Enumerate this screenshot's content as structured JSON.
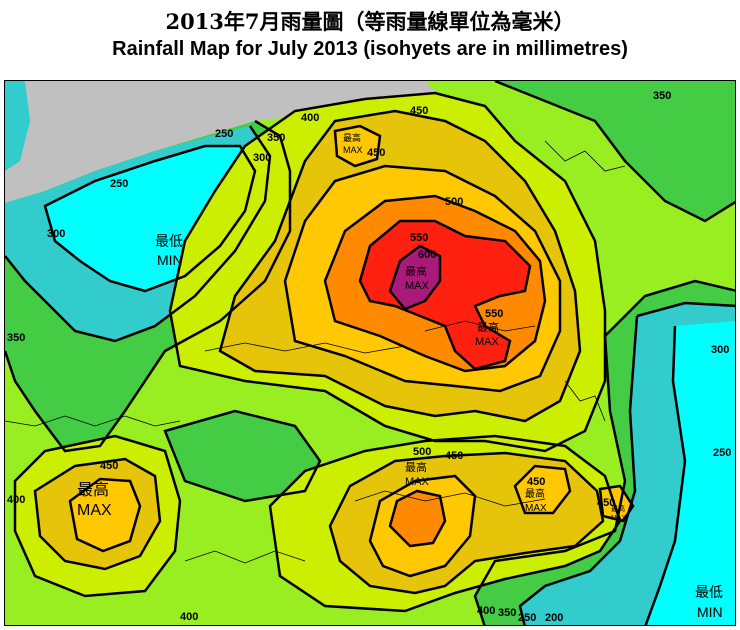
{
  "title_zh": "2013年7月雨量圖（等雨量線單位為毫米）",
  "title_en": "Rainfall Map for July 2013 (isohyets are in millimetres)",
  "legend_terms": {
    "max_zh": "最高",
    "max_en": "MAX",
    "min_zh": "最低",
    "min_en": "MIN"
  },
  "isohyet_labels": [
    {
      "id": "250-nw",
      "text": "250"
    },
    {
      "id": "250-n",
      "text": "250"
    },
    {
      "id": "250-e",
      "text": "250"
    },
    {
      "id": "300-w",
      "text": "300"
    },
    {
      "id": "300-n",
      "text": "300"
    },
    {
      "id": "300-e",
      "text": "300"
    },
    {
      "id": "350-w",
      "text": "350"
    },
    {
      "id": "350-n",
      "text": "350"
    },
    {
      "id": "350-ne",
      "text": "350"
    },
    {
      "id": "350-s",
      "text": "350"
    },
    {
      "id": "400-n",
      "text": "400"
    },
    {
      "id": "400-w",
      "text": "400"
    },
    {
      "id": "400-s",
      "text": "400"
    },
    {
      "id": "400-se",
      "text": "400"
    },
    {
      "id": "450-n",
      "text": "450"
    },
    {
      "id": "450-nn",
      "text": "450"
    },
    {
      "id": "450-sw",
      "text": "450"
    },
    {
      "id": "450-s",
      "text": "450"
    },
    {
      "id": "450-se",
      "text": "450"
    },
    {
      "id": "450-sw2",
      "text": "450"
    },
    {
      "id": "500-n",
      "text": "500"
    },
    {
      "id": "500-s",
      "text": "500"
    },
    {
      "id": "550-a",
      "text": "550"
    },
    {
      "id": "550-b",
      "text": "550"
    },
    {
      "id": "600",
      "text": "600"
    },
    {
      "id": "250-s",
      "text": "250"
    },
    {
      "id": "200-s",
      "text": "200"
    }
  ],
  "extremes": [
    {
      "id": "max-north",
      "kind": "max"
    },
    {
      "id": "max-central",
      "kind": "max"
    },
    {
      "id": "max-central2",
      "kind": "max"
    },
    {
      "id": "max-west",
      "kind": "max"
    },
    {
      "id": "max-south",
      "kind": "max"
    },
    {
      "id": "max-se",
      "kind": "max"
    },
    {
      "id": "max-se2",
      "kind": "max"
    },
    {
      "id": "min-nw",
      "kind": "min"
    },
    {
      "id": "min-se",
      "kind": "min"
    }
  ],
  "colors": {
    "lt200": "#00ffff",
    "b200_250": "#33cccc",
    "b250_300": "#44cc44",
    "b300_350": "#99ee22",
    "b350_400": "#ccee00",
    "b400_450": "#e6c40a",
    "b450_500": "#ffc800",
    "b500_550": "#ff8a00",
    "b550_600": "#ff2010",
    "gt600": "#aa1a7a",
    "land_outside": "#c0c0c0"
  }
}
